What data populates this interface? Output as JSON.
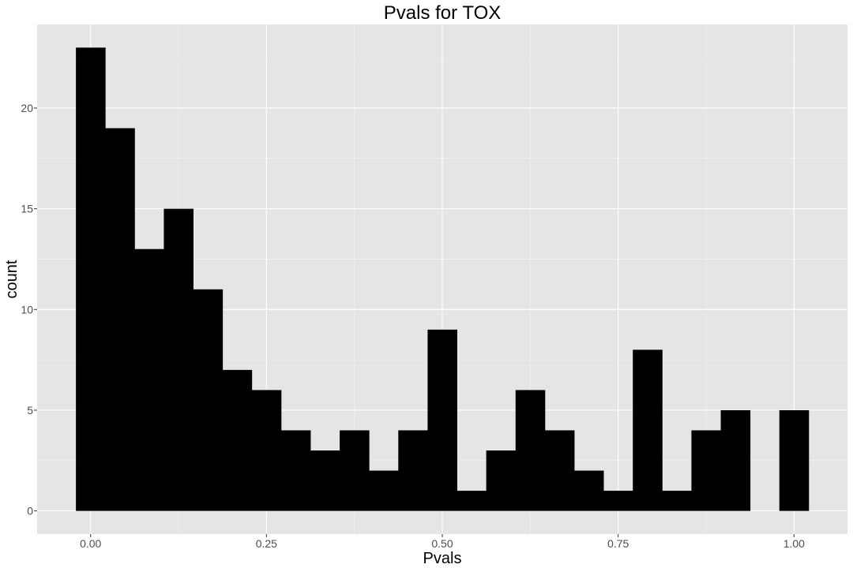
{
  "chart_data": {
    "type": "bar",
    "title": "Pvals for TOX",
    "xlabel": "Pvals",
    "ylabel": "count",
    "x_ticks": [
      "0.00",
      "0.25",
      "0.50",
      "0.75",
      "1.00"
    ],
    "y_ticks": [
      "0",
      "5",
      "10",
      "15",
      "20"
    ],
    "xlim": [
      -0.076,
      1.076
    ],
    "ylim": [
      -1.15,
      24.15
    ],
    "bin_width": 0.0417,
    "bin_centers": [
      0.0,
      0.0417,
      0.0833,
      0.125,
      0.1667,
      0.2083,
      0.25,
      0.2917,
      0.3333,
      0.375,
      0.4167,
      0.4583,
      0.5,
      0.5417,
      0.5833,
      0.625,
      0.6667,
      0.7083,
      0.75,
      0.7917,
      0.8333,
      0.875,
      0.9167,
      0.9583,
      1.0
    ],
    "values": [
      23,
      19,
      13,
      15,
      11,
      7,
      6,
      4,
      3,
      4,
      2,
      4,
      9,
      1,
      3,
      6,
      4,
      2,
      1,
      8,
      1,
      4,
      5,
      0,
      5
    ],
    "colors": {
      "bar": "#000000",
      "panel": "#e5e5e5",
      "grid": "#ffffff"
    }
  }
}
